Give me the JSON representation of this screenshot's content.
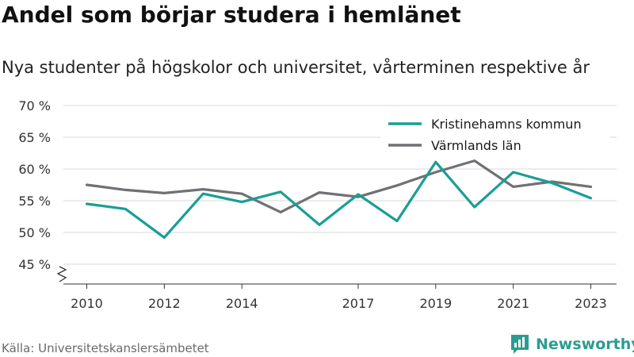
{
  "header": {
    "title": "Andel som börjar studera i hemlänet",
    "subtitle": "Nya studenter på högskolor och universitet, vårterminen respektive år"
  },
  "footer": {
    "source": "Källa: Universitetskanslersämbetet",
    "brand": "Newsworthy",
    "brand_icon": "bar-chart-logo-icon"
  },
  "colors": {
    "series_1": "#1a9e96",
    "series_2": "#707075",
    "grid": "#d9d9d9",
    "axis": "#333333",
    "brand": "#2a9d8f"
  },
  "chart_data": {
    "type": "line",
    "ylim": [
      45,
      70
    ],
    "y_ticks": [
      45,
      50,
      55,
      60,
      65,
      70
    ],
    "y_tick_labels": [
      "45 %",
      "50 %",
      "55 %",
      "60 %",
      "65 %",
      "70 %"
    ],
    "x_ticks": [
      2010,
      2012,
      2014,
      2017,
      2019,
      2021,
      2023
    ],
    "x_tick_labels": [
      "2010",
      "2012",
      "2014",
      "2017",
      "2019",
      "2021",
      "2023"
    ],
    "xlim": [
      2010,
      2023
    ],
    "axis_break": true,
    "grid": "horizontal",
    "legend_position": "top-right",
    "x": [
      2010,
      2011,
      2012,
      2013,
      2014,
      2015,
      2016,
      2017,
      2018,
      2019,
      2020,
      2021,
      2022,
      2023
    ],
    "series": [
      {
        "name": "Kristinehamns kommun",
        "color": "#1a9e96",
        "values": [
          54.5,
          53.7,
          49.2,
          56.1,
          54.8,
          56.4,
          51.2,
          56.0,
          51.8,
          61.1,
          54.0,
          59.5,
          57.8,
          55.4
        ]
      },
      {
        "name": "Värmlands län",
        "color": "#707075",
        "values": [
          57.5,
          56.7,
          56.2,
          56.8,
          56.1,
          53.2,
          56.3,
          55.6,
          57.4,
          59.5,
          61.3,
          57.2,
          58.0,
          57.2
        ]
      }
    ]
  }
}
